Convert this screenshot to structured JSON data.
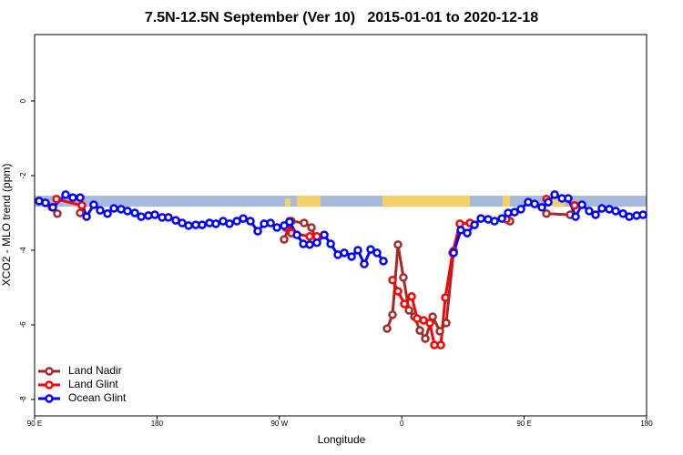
{
  "chart_data": {
    "type": "line",
    "title": "7.5N-12.5N September (Ver 10)   2015-01-01 to 2020-12-18",
    "x_label": "Longitude",
    "y_label": "XCO2 - MLO trend (ppm)",
    "xlim": [
      90,
      540
    ],
    "ylim": [
      -8.44,
      1.78
    ],
    "xticks": [
      {
        "value": 90,
        "label": "90 E"
      },
      {
        "value": 180,
        "label": "180"
      },
      {
        "value": 270,
        "label": "90 W"
      },
      {
        "value": 360,
        "label": "0"
      },
      {
        "value": 450,
        "label": "90 E"
      },
      {
        "value": 540,
        "label": "180"
      }
    ],
    "yticks": [
      0,
      -2,
      -4,
      -6,
      -8
    ],
    "legend": "bottom-left",
    "series": [
      {
        "name": "Land Nadir",
        "color": "#a52a2a",
        "x": [
          102.7,
          106.7,
          null,
          123.5,
          null,
          273.5,
          278.8,
          288.2,
          293.6,
          297.6,
          null,
          349.2,
          353.2,
          357.2,
          361.2,
          365.3,
          369.3,
          373.3,
          377.3,
          382.7,
          388.0,
          392.7,
          398.1,
          null,
          439.6,
          null,
          466.4,
          483.8
        ],
        "values": [
          -2.85,
          -3.02,
          null,
          -3.0,
          null,
          -3.71,
          -3.22,
          -3.27,
          -3.39,
          -3.78,
          null,
          -6.1,
          -5.73,
          -3.85,
          -4.73,
          -5.61,
          -5.78,
          -6.15,
          -6.37,
          -5.78,
          -6.17,
          -5.95,
          -4.02,
          null,
          -3.22,
          null,
          -3.02,
          -3.05
        ]
      },
      {
        "name": "Land Glint",
        "color": "#ff0000",
        "x": [
          106.1,
          124.8,
          null,
          274.8,
          277.5,
          278.8,
          292.3,
          297.6,
          null,
          353.2,
          357.2,
          361.9,
          367.3,
          371.3,
          376.0,
          380.6,
          384.0,
          388.7,
          392.0,
          397.4,
          402.7,
          410.1,
          null,
          436.9,
          null,
          466.4,
          null,
          487.1
        ],
        "values": [
          -2.63,
          -2.8,
          null,
          -3.39,
          -3.22,
          -3.54,
          -3.63,
          -3.63,
          null,
          -4.8,
          -5.1,
          -5.44,
          -5.24,
          -5.83,
          -5.88,
          -5.95,
          -6.54,
          -6.54,
          -5.27,
          -4.07,
          -3.29,
          -3.27,
          null,
          -3.17,
          null,
          -2.63,
          null,
          -2.8
        ]
      },
      {
        "name": "Ocean Glint",
        "color": "#0000ff",
        "x": [
          93.3,
          98.0,
          103.4,
          112.8,
          118.1,
          123.5,
          128.2,
          133.5,
          138.2,
          143.6,
          148.3,
          153.6,
          158.3,
          163.7,
          168.4,
          173.7,
          178.4,
          183.8,
          188.4,
          193.8,
          198.5,
          203.2,
          208.5,
          213.2,
          218.6,
          223.3,
          228.6,
          233.3,
          238.7,
          243.4,
          248.7,
          254.1,
          258.8,
          263.5,
          268.2,
          273.5,
          277.5,
          282.9,
          287.6,
          292.3,
          297.6,
          303.0,
          307.7,
          313.0,
          317.7,
          323.1,
          327.7,
          332.4,
          337.1,
          341.8,
          346.5,
          null,
          398.1,
          403.4,
          408.1,
          413.5,
          418.2,
          423.5,
          428.2,
          433.6,
          438.2,
          442.9,
          447.6,
          453.0,
          457.7,
          463.0,
          467.7,
          472.4,
          477.8,
          482.4,
          487.8,
          492.5,
          497.8,
          502.5,
          507.2,
          512.6,
          517.3,
          522.7,
          527.3,
          532.7,
          537.4
        ],
        "values": [
          -2.68,
          -2.73,
          -2.85,
          -2.51,
          -2.59,
          -2.59,
          -3.1,
          -2.78,
          -2.93,
          -3.02,
          -2.88,
          -2.9,
          -2.95,
          -3.0,
          -3.1,
          -3.07,
          -3.05,
          -3.12,
          -3.12,
          -3.2,
          -3.27,
          -3.34,
          -3.32,
          -3.32,
          -3.27,
          -3.29,
          -3.22,
          -3.29,
          -3.22,
          -3.15,
          -3.22,
          -3.49,
          -3.29,
          -3.27,
          -3.39,
          -3.34,
          -3.24,
          -3.59,
          -3.83,
          -3.85,
          -3.8,
          -3.59,
          -3.83,
          -4.12,
          -4.07,
          -4.17,
          -4.0,
          -4.37,
          -3.98,
          -4.07,
          -4.29,
          null,
          -4.07,
          -3.46,
          -3.54,
          -3.32,
          -3.15,
          -3.17,
          -3.22,
          -3.15,
          -3.0,
          -2.98,
          -2.9,
          -2.71,
          -2.76,
          -2.85,
          -2.71,
          -2.51,
          -2.61,
          -2.61,
          -3.1,
          -2.78,
          -2.95,
          -3.05,
          -2.88,
          -2.9,
          -2.95,
          -3.02,
          -3.1,
          -3.07,
          -3.05
        ]
      }
    ]
  }
}
